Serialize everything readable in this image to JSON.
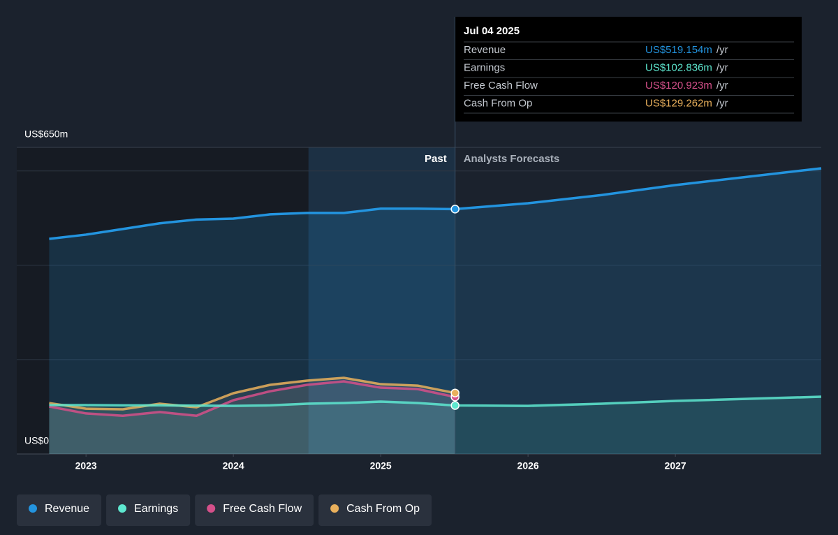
{
  "chart_data": {
    "type": "line",
    "x": [
      2022.75,
      2023,
      2023.25,
      2023.5,
      2023.75,
      2024,
      2024.25,
      2024.5,
      2024.75,
      2025,
      2025.25,
      2025.505,
      2026,
      2026.5,
      2027,
      2027.99
    ],
    "series": [
      {
        "name": "Revenue",
        "color": "#2394df",
        "values": [
          456,
          465,
          477,
          489,
          497,
          499,
          508,
          511,
          511,
          520,
          520,
          519.154,
          531.5,
          549,
          570,
          605.6
        ]
      },
      {
        "name": "Earnings",
        "color": "#5ee8d0",
        "values": [
          103.6,
          103.6,
          103,
          103,
          102.5,
          102,
          103,
          106.6,
          108,
          111,
          108,
          102.836,
          102,
          106.6,
          112.5,
          121.4
        ]
      },
      {
        "name": "Free Cash Flow",
        "color": "#d5508a",
        "values": [
          100.7,
          86,
          81,
          89,
          81,
          114,
          133,
          146.6,
          154,
          140.6,
          137.7,
          120.923,
          null,
          null,
          null,
          null
        ]
      },
      {
        "name": "Cash From Op",
        "color": "#e9b05c",
        "values": [
          108,
          96,
          94.8,
          106.6,
          99,
          128.8,
          146.6,
          155.5,
          161.4,
          148,
          145,
          129.262,
          null,
          null,
          null,
          null
        ]
      }
    ],
    "xlim": [
      2022.53,
      2027.99
    ],
    "xticks": [
      2023,
      2024,
      2025,
      2026,
      2027
    ],
    "ylim": [
      0,
      650
    ],
    "yticks": [
      {
        "value": 0,
        "label": "US$0"
      },
      {
        "value": 650,
        "label": "US$650m"
      }
    ],
    "grid_values": [
      200,
      400,
      600
    ],
    "past_label": "Past",
    "forecast_label": "Analysts Forecasts",
    "tooltip": {
      "date": "Jul 04 2025",
      "labels": [
        "US$519.154m",
        "US$102.836m",
        "US$120.923m",
        "US$129.262m"
      ],
      "unit": "/yr"
    }
  }
}
